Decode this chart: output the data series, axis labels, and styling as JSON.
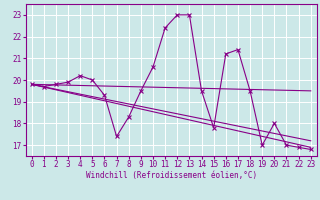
{
  "xlabel": "Windchill (Refroidissement éolien,°C)",
  "background_color": "#cce8e8",
  "grid_color": "#ffffff",
  "line_color": "#880088",
  "xlim": [
    -0.5,
    23.5
  ],
  "ylim": [
    16.5,
    23.5
  ],
  "yticks": [
    17,
    18,
    19,
    20,
    21,
    22,
    23
  ],
  "xticks": [
    0,
    1,
    2,
    3,
    4,
    5,
    6,
    7,
    8,
    9,
    10,
    11,
    12,
    13,
    14,
    15,
    16,
    17,
    18,
    19,
    20,
    21,
    22,
    23
  ],
  "series1_x": [
    0,
    1,
    2,
    3,
    4,
    5,
    6,
    7,
    8,
    9,
    10,
    11,
    12,
    13,
    14,
    15,
    16,
    17,
    18,
    19,
    20,
    21,
    22,
    23
  ],
  "series1_y": [
    19.8,
    19.7,
    19.8,
    19.9,
    20.2,
    20.0,
    19.3,
    17.4,
    18.3,
    19.5,
    20.6,
    22.4,
    23.0,
    23.0,
    19.5,
    17.8,
    21.2,
    21.4,
    19.5,
    17.0,
    18.0,
    17.0,
    16.9,
    16.8
  ],
  "series2_x": [
    0,
    23
  ],
  "series2_y": [
    19.8,
    19.5
  ],
  "series3_x": [
    0,
    23
  ],
  "series3_y": [
    19.8,
    17.2
  ],
  "series4_x": [
    0,
    23
  ],
  "series4_y": [
    19.8,
    16.9
  ],
  "tick_fontsize": 5.5,
  "xlabel_fontsize": 5.5
}
